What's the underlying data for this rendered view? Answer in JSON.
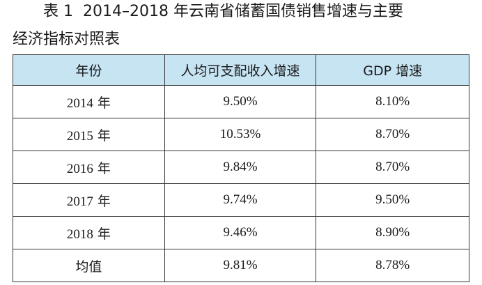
{
  "caption": {
    "label": "表 1",
    "title_line1": "2014–2018 年云南省储蓄国债销售增速与主要",
    "title_line2": "经济指标对照表"
  },
  "table": {
    "headers": [
      "年份",
      "人均可支配收入增速",
      "GDP 增速"
    ],
    "rows": [
      {
        "year": "2014",
        "suffix": "年",
        "income": "9.50%",
        "gdp": "8.10%"
      },
      {
        "year": "2015",
        "suffix": "年",
        "income": "10.53%",
        "gdp": "8.70%"
      },
      {
        "year": "2016",
        "suffix": "年",
        "income": "9.84%",
        "gdp": "8.70%"
      },
      {
        "year": "2017",
        "suffix": "年",
        "income": "9.74%",
        "gdp": "9.50%"
      },
      {
        "year": "2018",
        "suffix": "年",
        "income": "9.46%",
        "gdp": "8.90%"
      }
    ],
    "average": {
      "label": "均值",
      "income": "9.81%",
      "gdp": "8.78%"
    }
  }
}
